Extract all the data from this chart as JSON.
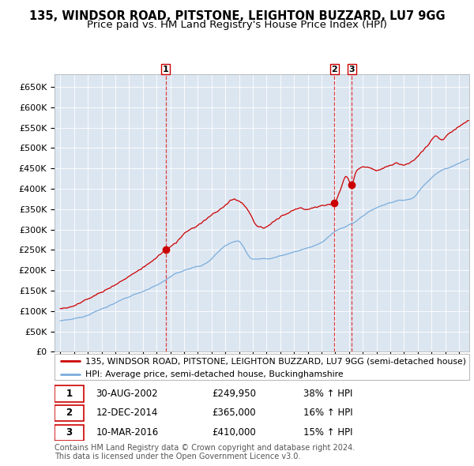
{
  "title": "135, WINDSOR ROAD, PITSTONE, LEIGHTON BUZZARD, LU7 9GG",
  "subtitle": "Price paid vs. HM Land Registry's House Price Index (HPI)",
  "ylim": [
    0,
    680000
  ],
  "yticks": [
    0,
    50000,
    100000,
    150000,
    200000,
    250000,
    300000,
    350000,
    400000,
    450000,
    500000,
    550000,
    600000,
    650000
  ],
  "xlim_start": 1994.58,
  "xlim_end": 2024.75,
  "background_color": "#dce6f1",
  "red_line_color": "#cc0000",
  "blue_line_color": "#7aaddc",
  "sale_dates": [
    2002.664,
    2014.942,
    2016.192
  ],
  "sale_prices": [
    249950,
    365000,
    410000
  ],
  "sale_labels": [
    "1",
    "2",
    "3"
  ],
  "legend_red": "135, WINDSOR ROAD, PITSTONE, LEIGHTON BUZZARD, LU7 9GG (semi-detached house)",
  "legend_blue": "HPI: Average price, semi-detached house, Buckinghamshire",
  "table_rows": [
    [
      "1",
      "30-AUG-2002",
      "£249,950",
      "38% ↑ HPI"
    ],
    [
      "2",
      "12-DEC-2014",
      "£365,000",
      "16% ↑ HPI"
    ],
    [
      "3",
      "10-MAR-2016",
      "£410,000",
      "15% ↑ HPI"
    ]
  ],
  "footer": "Contains HM Land Registry data © Crown copyright and database right 2024.\nThis data is licensed under the Open Government Licence v3.0.",
  "title_fontsize": 10.5,
  "subtitle_fontsize": 9.5,
  "tick_fontsize": 8,
  "legend_fontsize": 7.8,
  "table_fontsize": 8.5,
  "footer_fontsize": 7
}
